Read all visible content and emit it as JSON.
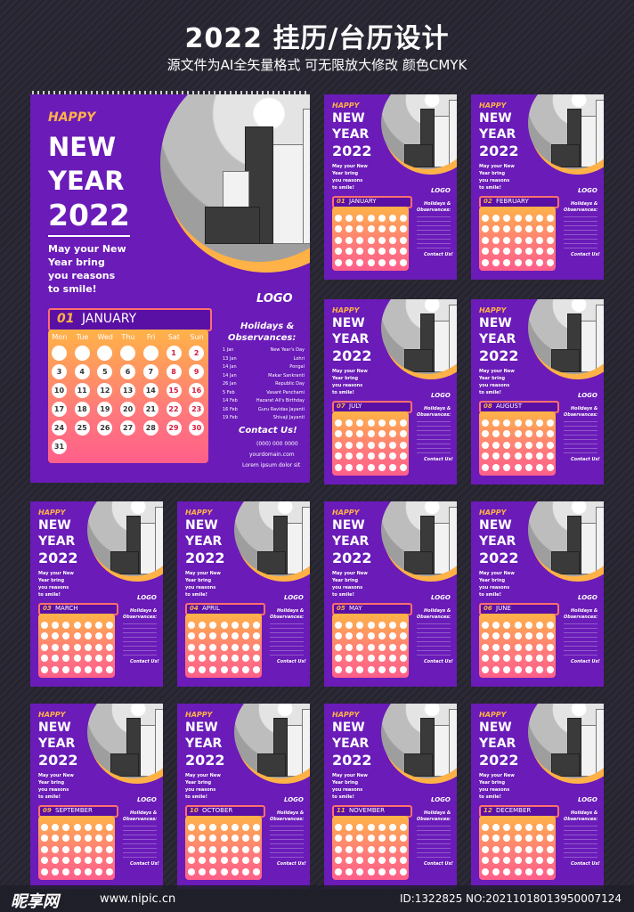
{
  "header": {
    "title": "2022 挂历/台历设计",
    "subtitle": "源文件为AI全矢量格式   可无限放大修改   颜色CMYK"
  },
  "main_sheet": {
    "happy": "HAPPY",
    "new": "NEW",
    "year": "YEAR",
    "num": "2022",
    "message": [
      "May your New",
      "Year bring",
      "you reasons",
      "to smile!"
    ],
    "logo": "LOGO",
    "month_num": "01",
    "month_name": "JANUARY",
    "weekdays": [
      "Mon",
      "Tue",
      "Wed",
      "Thu",
      "Fri",
      "Sat",
      "Sun"
    ],
    "days": [
      "",
      "",
      "",
      "",
      "",
      "1",
      "2",
      "3",
      "4",
      "5",
      "6",
      "7",
      "8",
      "9",
      "10",
      "11",
      "12",
      "13",
      "14",
      "15",
      "16",
      "17",
      "18",
      "19",
      "20",
      "21",
      "22",
      "23",
      "24",
      "25",
      "26",
      "27",
      "28",
      "29",
      "30",
      "31"
    ],
    "holidays_title": [
      "Holidays &",
      "Observances:"
    ],
    "holidays": [
      {
        "date": "1 Jan",
        "name": "New Year's Day"
      },
      {
        "date": "13 Jan",
        "name": "Lohri"
      },
      {
        "date": "14 Jan",
        "name": "Pongal"
      },
      {
        "date": "14 Jan",
        "name": "Makar Sankranti"
      },
      {
        "date": "26 Jan",
        "name": "Republic Day"
      },
      {
        "date": "5 Feb",
        "name": "Vasant Panchami"
      },
      {
        "date": "14 Feb",
        "name": "Hazarat Ali's Birthday"
      },
      {
        "date": "16 Feb",
        "name": "Guru Ravidas Jayanti"
      },
      {
        "date": "19 Feb",
        "name": "Shivaji Jayanti"
      }
    ],
    "contact_title": "Contact Us!",
    "contact_phone": "(000) 000 0000",
    "contact_web": "yourdomain.com",
    "contact_addr": "Lorem ipsum dolor sit"
  },
  "small_sheets": [
    {
      "num": "01",
      "month": "JANUARY"
    },
    {
      "num": "02",
      "month": "FEBRUARY"
    },
    {
      "num": "07",
      "month": "JULY"
    },
    {
      "num": "08",
      "month": "AUGUST"
    },
    {
      "num": "03",
      "month": "MARCH"
    },
    {
      "num": "04",
      "month": "APRIL"
    },
    {
      "num": "05",
      "month": "MAY"
    },
    {
      "num": "06",
      "month": "JUNE"
    },
    {
      "num": "09",
      "month": "SEPTEMBER"
    },
    {
      "num": "10",
      "month": "OCTOBER"
    },
    {
      "num": "11",
      "month": "NOVEMBER"
    },
    {
      "num": "12",
      "month": "DECEMBER"
    }
  ],
  "small_text": {
    "happy": "HAPPY",
    "new": "NEW",
    "year": "YEAR",
    "num": "2022",
    "message": [
      "May your New",
      "Year bring",
      "you reasons",
      "to smile!"
    ],
    "logo": "LOGO",
    "holidays_title": [
      "Holidays &",
      "Observances:"
    ],
    "contact_title": "Contact Us!"
  },
  "watermark": {
    "logo": "昵享网",
    "url": "www.nipic.cn",
    "id": "ID:1322825 NO:20211018013950007124"
  },
  "colors": {
    "purple": "#6a1bb8",
    "orange": "#ffb347",
    "pink": "#ff5f8a"
  }
}
